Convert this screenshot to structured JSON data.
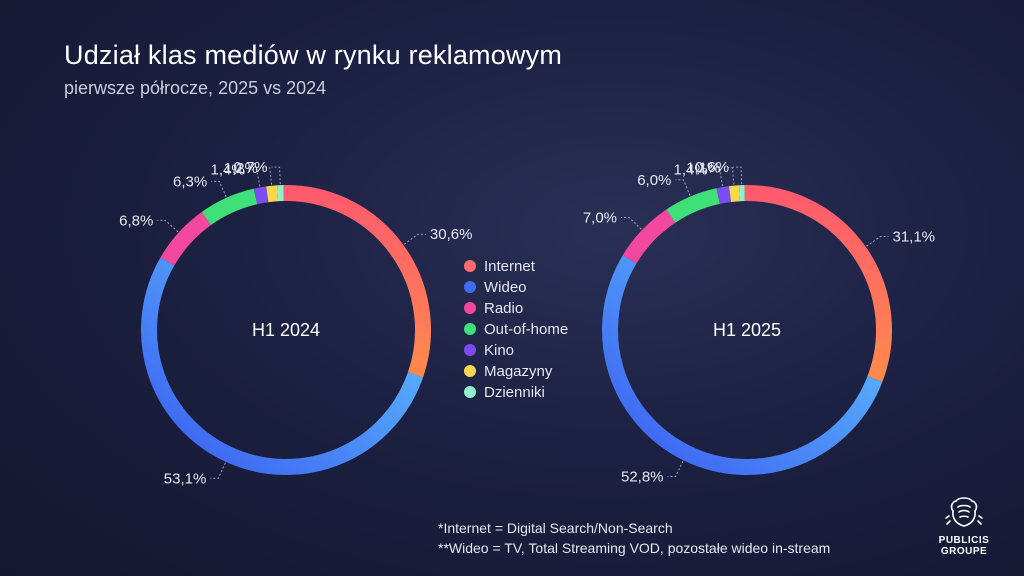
{
  "header": {
    "title": "Udział klas mediów w rynku reklamowym",
    "subtitle": "pierwsze półrocze, 2025 vs 2024"
  },
  "chart_data": [
    {
      "type": "pie",
      "center_label": "H1 2024",
      "categories": [
        "Internet",
        "Wideo",
        "Radio",
        "Out-of-home",
        "Kino",
        "Magazyny",
        "Dzienniki"
      ],
      "values": [
        30.6,
        53.1,
        6.8,
        6.3,
        1.4,
        1.2,
        0.7
      ],
      "value_labels": [
        "30,6%",
        "53,1%",
        "6,8%",
        "6,3%",
        "1,4%",
        "1,2%",
        "0,7%"
      ]
    },
    {
      "type": "pie",
      "center_label": "H1 2025",
      "categories": [
        "Internet",
        "Wideo",
        "Radio",
        "Out-of-home",
        "Kino",
        "Magazyny",
        "Dzienniki"
      ],
      "values": [
        31.1,
        52.8,
        7.0,
        6.0,
        1.4,
        1.1,
        0.6
      ],
      "value_labels": [
        "31,1%",
        "52,8%",
        "7,0%",
        "6,0%",
        "1,4%",
        "1,1%",
        "0,6%"
      ]
    }
  ],
  "legend": {
    "placement": "center",
    "items": [
      {
        "label": "Internet",
        "color": "#ff6b6b"
      },
      {
        "label": "Wideo",
        "color": "#3d6cf5"
      },
      {
        "label": "Radio",
        "color": "#f4479f"
      },
      {
        "label": "Out-of-home",
        "color": "#3fe078"
      },
      {
        "label": "Kino",
        "color": "#7b4df0"
      },
      {
        "label": "Magazyny",
        "color": "#f7d84c"
      },
      {
        "label": "Dzienniki",
        "color": "#8ff0cf"
      }
    ]
  },
  "series_gradients": {
    "Internet": [
      "#ff5a6e",
      "#ff8a4c"
    ],
    "Wideo": [
      "#60c8ff",
      "#3a5bf0"
    ]
  },
  "footnotes": {
    "line1": "*Internet = Digital Search/Non-Search",
    "line2": "**Wideo = TV, Total Streaming VOD, pozostałe wideo in-stream"
  },
  "logo": {
    "line1": "PUBLICIS",
    "line2": "GROUPE",
    "icon": "lion-icon"
  }
}
